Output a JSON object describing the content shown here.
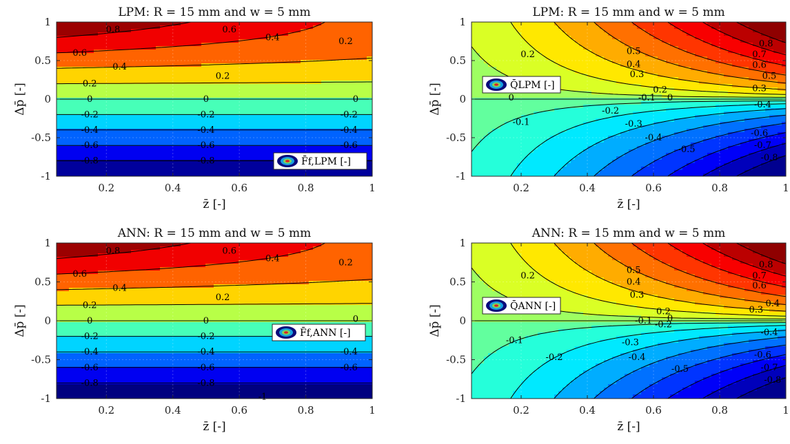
{
  "chart_data": [
    {
      "type": "contour",
      "panel": "top-left",
      "title": "LPM: R = 15 mm and w = 5 mm",
      "xlabel": "z̄ [-]",
      "ylabel": "Δp̄ [-]",
      "xlim": [
        0.05,
        1
      ],
      "ylim": [
        -1,
        1
      ],
      "xticks": [
        "0.2",
        "0.4",
        "0.6",
        "0.8",
        "1"
      ],
      "yticks": [
        "1",
        "0.5",
        "0",
        "-0.5",
        "-1"
      ],
      "legend": "F̄f,LPM [-]",
      "legend_position": "bottom-right",
      "field": "force",
      "levels": [
        -0.8,
        -0.6,
        -0.4,
        -0.2,
        0,
        0.2,
        0.4,
        0.6,
        0.8
      ],
      "contour_labels": [
        {
          "text": "0.8",
          "x": 0.22,
          "y": 0.9
        },
        {
          "text": "0.6",
          "x": 0.57,
          "y": 0.9
        },
        {
          "text": "0.4",
          "x": 0.7,
          "y": 0.8
        },
        {
          "text": "0.2",
          "x": 0.92,
          "y": 0.75
        },
        {
          "text": "0.6",
          "x": 0.12,
          "y": 0.6
        },
        {
          "text": "0.4",
          "x": 0.24,
          "y": 0.42
        },
        {
          "text": "0.2",
          "x": 0.15,
          "y": 0.2
        },
        {
          "text": "0.2",
          "x": 0.55,
          "y": 0.3
        },
        {
          "text": "0",
          "x": 0.15,
          "y": 0
        },
        {
          "text": "0",
          "x": 0.5,
          "y": 0
        },
        {
          "text": "0",
          "x": 0.95,
          "y": 0
        },
        {
          "text": "-0.2",
          "x": 0.15,
          "y": -0.2
        },
        {
          "text": "-0.2",
          "x": 0.5,
          "y": -0.2
        },
        {
          "text": "-0.2",
          "x": 0.93,
          "y": -0.2
        },
        {
          "text": "-0.4",
          "x": 0.15,
          "y": -0.4
        },
        {
          "text": "-0.4",
          "x": 0.5,
          "y": -0.4
        },
        {
          "text": "-0.4",
          "x": 0.93,
          "y": -0.4
        },
        {
          "text": "-0.6",
          "x": 0.15,
          "y": -0.6
        },
        {
          "text": "-0.6",
          "x": 0.5,
          "y": -0.6
        },
        {
          "text": "-0.6",
          "x": 0.93,
          "y": -0.6
        },
        {
          "text": "-0.8",
          "x": 0.15,
          "y": -0.8
        },
        {
          "text": "-0.8",
          "x": 0.5,
          "y": -0.8
        }
      ]
    },
    {
      "type": "contour",
      "panel": "top-right",
      "title": "LPM: R = 15 mm and w = 5 mm",
      "xlabel": "z̄ [-]",
      "ylabel": "Δp̄ [-]",
      "xlim": [
        0.05,
        1
      ],
      "ylim": [
        -1,
        1
      ],
      "xticks": [
        "0.2",
        "0.4",
        "0.6",
        "0.8",
        "1"
      ],
      "yticks": [
        "1",
        "0.5",
        "0",
        "-0.5",
        "-1"
      ],
      "legend": "Q̄LPM [-]",
      "legend_position": "top-left",
      "field": "flow",
      "levels": [
        -0.8,
        -0.7,
        -0.6,
        -0.5,
        -0.4,
        -0.3,
        -0.2,
        -0.1,
        0,
        0.1,
        0.2,
        0.3,
        0.4,
        0.5,
        0.6,
        0.7,
        0.8
      ],
      "contour_labels": [
        {
          "text": "0.2",
          "x": 0.22,
          "y": 0.58
        },
        {
          "text": "0.5",
          "x": 0.54,
          "y": 0.62
        },
        {
          "text": "0.4",
          "x": 0.54,
          "y": 0.45
        },
        {
          "text": "0.3",
          "x": 0.55,
          "y": 0.32
        },
        {
          "text": "0.2",
          "x": 0.62,
          "y": 0.12
        },
        {
          "text": "0.8",
          "x": 0.94,
          "y": 0.72
        },
        {
          "text": "0.7",
          "x": 0.92,
          "y": 0.58
        },
        {
          "text": "0.6",
          "x": 0.92,
          "y": 0.44
        },
        {
          "text": "0.5",
          "x": 0.95,
          "y": 0.3
        },
        {
          "text": "0.3",
          "x": 0.92,
          "y": 0.14
        },
        {
          "text": "-0.1",
          "x": 0.2,
          "y": -0.3
        },
        {
          "text": "-0.2",
          "x": 0.47,
          "y": -0.15
        },
        {
          "text": "-0.3",
          "x": 0.54,
          "y": -0.32
        },
        {
          "text": "-0.4",
          "x": 0.6,
          "y": -0.5
        },
        {
          "text": "-0.5",
          "x": 0.7,
          "y": -0.65
        },
        {
          "text": "-0.6",
          "x": 0.92,
          "y": -0.44
        },
        {
          "text": "-0.7",
          "x": 0.93,
          "y": -0.6
        },
        {
          "text": "-0.8",
          "x": 0.95,
          "y": -0.76
        },
        {
          "text": "-0.4",
          "x": 0.93,
          "y": -0.07
        },
        {
          "text": "-0.1",
          "x": 0.58,
          "y": 0.02
        },
        {
          "text": "0",
          "x": 0.17,
          "y": 0.02
        },
        {
          "text": "0",
          "x": 0.65,
          "y": 0.02
        }
      ]
    },
    {
      "type": "contour",
      "panel": "bottom-left",
      "title": "ANN: R = 15 mm and w = 5 mm",
      "xlabel": "z̄ [-]",
      "ylabel": "Δp̄ [-]",
      "xlim": [
        0.05,
        1
      ],
      "ylim": [
        -1,
        1
      ],
      "xticks": [
        "0.2",
        "0.4",
        "0.6",
        "0.8",
        "1"
      ],
      "yticks": [
        "1",
        "0.5",
        "0",
        "-0.5",
        "-1"
      ],
      "legend": "F̄f,ANN [-]",
      "legend_position": "middle-right",
      "field": "force",
      "levels": [
        -1,
        -0.8,
        -0.6,
        -0.4,
        -0.2,
        0,
        0.2,
        0.4,
        0.6,
        0.8
      ],
      "contour_labels": [
        {
          "text": "0.8",
          "x": 0.22,
          "y": 0.9
        },
        {
          "text": "0.6",
          "x": 0.57,
          "y": 0.9
        },
        {
          "text": "0.4",
          "x": 0.7,
          "y": 0.8
        },
        {
          "text": "0.2",
          "x": 0.92,
          "y": 0.75
        },
        {
          "text": "0.6",
          "x": 0.12,
          "y": 0.6
        },
        {
          "text": "0.4",
          "x": 0.24,
          "y": 0.42
        },
        {
          "text": "0.2",
          "x": 0.15,
          "y": 0.2
        },
        {
          "text": "0.2",
          "x": 0.55,
          "y": 0.3
        },
        {
          "text": "0",
          "x": 0.15,
          "y": 0
        },
        {
          "text": "0",
          "x": 0.5,
          "y": 0
        },
        {
          "text": "0",
          "x": 0.95,
          "y": 0.02
        },
        {
          "text": "-0.2",
          "x": 0.15,
          "y": -0.2
        },
        {
          "text": "-0.2",
          "x": 0.5,
          "y": -0.2
        },
        {
          "text": "-0.2",
          "x": 0.93,
          "y": -0.2
        },
        {
          "text": "-0.4",
          "x": 0.15,
          "y": -0.4
        },
        {
          "text": "-0.4",
          "x": 0.5,
          "y": -0.4
        },
        {
          "text": "-0.4",
          "x": 0.93,
          "y": -0.4
        },
        {
          "text": "-0.6",
          "x": 0.15,
          "y": -0.6
        },
        {
          "text": "-0.6",
          "x": 0.5,
          "y": -0.6
        },
        {
          "text": "-0.6",
          "x": 0.93,
          "y": -0.6
        },
        {
          "text": "-0.8",
          "x": 0.15,
          "y": -0.8
        },
        {
          "text": "-0.8",
          "x": 0.5,
          "y": -0.8
        },
        {
          "text": "-1",
          "x": 0.67,
          "y": -0.98
        }
      ]
    },
    {
      "type": "contour",
      "panel": "bottom-right",
      "title": "ANN: R = 15 mm and w = 5 mm",
      "xlabel": "z̄ [-]",
      "ylabel": "Δp̄ [-]",
      "xlim": [
        0.05,
        1
      ],
      "ylim": [
        -1,
        1
      ],
      "xticks": [
        "0.2",
        "0.4",
        "0.6",
        "0.8",
        "1"
      ],
      "yticks": [
        "1",
        "0.5",
        "0",
        "-0.5",
        "-1"
      ],
      "legend": "Q̄ANN [-]",
      "legend_position": "top-left",
      "field": "flow",
      "levels": [
        -0.8,
        -0.7,
        -0.6,
        -0.5,
        -0.4,
        -0.3,
        -0.2,
        -0.1,
        0,
        0.1,
        0.2,
        0.3,
        0.4,
        0.5,
        0.6,
        0.7,
        0.8
      ],
      "contour_labels": [
        {
          "text": "0.2",
          "x": 0.22,
          "y": 0.58
        },
        {
          "text": "0.5",
          "x": 0.54,
          "y": 0.65
        },
        {
          "text": "0.4",
          "x": 0.54,
          "y": 0.5
        },
        {
          "text": "0.3",
          "x": 0.55,
          "y": 0.33
        },
        {
          "text": "0.2",
          "x": 0.63,
          "y": 0.12
        },
        {
          "text": "0.8",
          "x": 0.94,
          "y": 0.72
        },
        {
          "text": "0.7",
          "x": 0.92,
          "y": 0.58
        },
        {
          "text": "0.6",
          "x": 0.92,
          "y": 0.45
        },
        {
          "text": "0.4",
          "x": 0.96,
          "y": 0.22
        },
        {
          "text": "0.3",
          "x": 0.91,
          "y": 0.14
        },
        {
          "text": "-0.1",
          "x": 0.18,
          "y": -0.25
        },
        {
          "text": "-0.2",
          "x": 0.3,
          "y": -0.47
        },
        {
          "text": "-0.3",
          "x": 0.53,
          "y": -0.28
        },
        {
          "text": "-0.4",
          "x": 0.55,
          "y": -0.47
        },
        {
          "text": "-0.5",
          "x": 0.68,
          "y": -0.62
        },
        {
          "text": "-0.6",
          "x": 0.93,
          "y": -0.44
        },
        {
          "text": "-0.7",
          "x": 0.95,
          "y": -0.6
        },
        {
          "text": "-0.8",
          "x": 0.96,
          "y": -0.76
        },
        {
          "text": "-0.4",
          "x": 0.95,
          "y": -0.15
        },
        {
          "text": "-0.1",
          "x": 0.57,
          "y": 0.0
        },
        {
          "text": "-0.2",
          "x": 0.63,
          "y": -0.05
        },
        {
          "text": "0",
          "x": 0.65,
          "y": 0.03
        }
      ]
    }
  ]
}
